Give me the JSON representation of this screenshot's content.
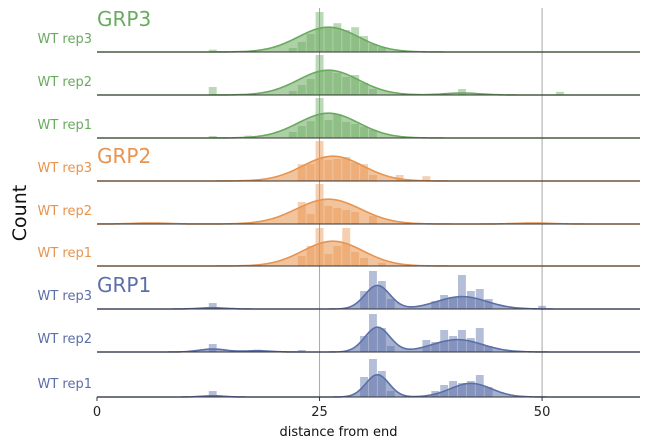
{
  "chart_data": {
    "type": "ridgeline-histogram",
    "xlabel": "distance from end",
    "ylabel": "Count",
    "xlim": [
      0,
      61
    ],
    "xticks": [
      0,
      25,
      50
    ],
    "vlines": [
      25,
      50
    ],
    "rows": [
      {
        "group": "GRP3",
        "label": "WT rep3",
        "color": "#6aaa5f",
        "kde": [
          {
            "mu": 26,
            "sigma": 3.4,
            "w": 1.0
          }
        ],
        "bars": [
          [
            13,
            0.06
          ],
          [
            22,
            0.1
          ],
          [
            23,
            0.25
          ],
          [
            24,
            0.45
          ],
          [
            25,
            1.0
          ],
          [
            26,
            0.6
          ],
          [
            27,
            0.72
          ],
          [
            28,
            0.55
          ],
          [
            29,
            0.62
          ],
          [
            30,
            0.4
          ],
          [
            31,
            0.2
          ],
          [
            32,
            0.12
          ]
        ]
      },
      {
        "group": "GRP3",
        "label": "WT rep2",
        "color": "#6aaa5f",
        "kde": [
          {
            "mu": 26,
            "sigma": 3.4,
            "w": 1.0
          },
          {
            "mu": 41,
            "sigma": 2.0,
            "w": 0.08
          }
        ],
        "bars": [
          [
            13,
            0.2
          ],
          [
            22,
            0.1
          ],
          [
            23,
            0.25
          ],
          [
            24,
            0.4
          ],
          [
            25,
            1.0
          ],
          [
            26,
            0.62
          ],
          [
            27,
            0.55
          ],
          [
            28,
            0.45
          ],
          [
            29,
            0.5
          ],
          [
            30,
            0.3
          ],
          [
            31,
            0.15
          ],
          [
            41,
            0.15
          ],
          [
            52,
            0.08
          ]
        ]
      },
      {
        "group": "GRP3",
        "label": "WT rep1",
        "color": "#6aaa5f",
        "kde": [
          {
            "mu": 26,
            "sigma": 3.4,
            "w": 1.0
          }
        ],
        "bars": [
          [
            13,
            0.05
          ],
          [
            17,
            0.06
          ],
          [
            22,
            0.15
          ],
          [
            23,
            0.3
          ],
          [
            24,
            0.42
          ],
          [
            25,
            1.0
          ],
          [
            26,
            0.45
          ],
          [
            27,
            0.6
          ],
          [
            28,
            0.4
          ],
          [
            29,
            0.35
          ],
          [
            30,
            0.28
          ],
          [
            31,
            0.2
          ]
        ]
      },
      {
        "group": "GRP2",
        "label": "WT rep3",
        "color": "#e8944e",
        "kde": [
          {
            "mu": 26.5,
            "sigma": 3.4,
            "w": 1.0
          }
        ],
        "bars": [
          [
            23,
            0.42
          ],
          [
            24,
            0.42
          ],
          [
            25,
            1.0
          ],
          [
            26,
            0.52
          ],
          [
            27,
            0.55
          ],
          [
            28,
            0.6
          ],
          [
            29,
            0.45
          ],
          [
            30,
            0.42
          ],
          [
            31,
            0.15
          ],
          [
            34,
            0.15
          ],
          [
            37,
            0.12
          ]
        ]
      },
      {
        "group": "GRP2",
        "label": "WT rep2",
        "color": "#e8944e",
        "kde": [
          {
            "mu": 26,
            "sigma": 3.6,
            "w": 1.0
          },
          {
            "mu": 6,
            "sigma": 2.0,
            "w": 0.04
          },
          {
            "mu": 49,
            "sigma": 2.0,
            "w": 0.04
          }
        ],
        "bars": [
          [
            23,
            0.55
          ],
          [
            24,
            0.25
          ],
          [
            25,
            1.0
          ],
          [
            26,
            0.45
          ],
          [
            27,
            0.4
          ],
          [
            28,
            0.35
          ],
          [
            29,
            0.3
          ],
          [
            31,
            0.2
          ],
          [
            50,
            0.04
          ]
        ]
      },
      {
        "group": "GRP2",
        "label": "WT rep1",
        "color": "#e8944e",
        "kde": [
          {
            "mu": 26.5,
            "sigma": 3.4,
            "w": 1.0
          }
        ],
        "bars": [
          [
            23,
            0.25
          ],
          [
            24,
            0.5
          ],
          [
            25,
            0.95
          ],
          [
            26,
            0.3
          ],
          [
            27,
            0.5
          ],
          [
            28,
            0.95
          ],
          [
            29,
            0.35
          ],
          [
            30,
            0.2
          ],
          [
            32,
            0.08
          ]
        ]
      },
      {
        "group": "GRP1",
        "label": "WT rep3",
        "color": "#5b6fa8",
        "kde": [
          {
            "mu": 31.5,
            "sigma": 1.4,
            "w": 0.95
          },
          {
            "mu": 41,
            "sigma": 2.8,
            "w": 0.5
          },
          {
            "mu": 13,
            "sigma": 1.5,
            "w": 0.05
          }
        ],
        "bars": [
          [
            13,
            0.15
          ],
          [
            30,
            0.45
          ],
          [
            31,
            0.95
          ],
          [
            32,
            0.7
          ],
          [
            33,
            0.25
          ],
          [
            38,
            0.2
          ],
          [
            39,
            0.35
          ],
          [
            40,
            0.3
          ],
          [
            41,
            0.85
          ],
          [
            42,
            0.45
          ],
          [
            43,
            0.5
          ],
          [
            44,
            0.25
          ],
          [
            50,
            0.08
          ]
        ]
      },
      {
        "group": "GRP1",
        "label": "WT rep2",
        "color": "#5b6fa8",
        "kde": [
          {
            "mu": 31.5,
            "sigma": 1.4,
            "w": 1.0
          },
          {
            "mu": 40.5,
            "sigma": 2.8,
            "w": 0.5
          },
          {
            "mu": 13,
            "sigma": 1.5,
            "w": 0.12
          },
          {
            "mu": 18,
            "sigma": 1.5,
            "w": 0.05
          }
        ],
        "bars": [
          [
            13,
            0.2
          ],
          [
            18,
            0.06
          ],
          [
            23,
            0.05
          ],
          [
            30,
            0.4
          ],
          [
            31,
            0.95
          ],
          [
            32,
            0.6
          ],
          [
            33,
            0.15
          ],
          [
            37,
            0.3
          ],
          [
            38,
            0.25
          ],
          [
            39,
            0.55
          ],
          [
            40,
            0.4
          ],
          [
            41,
            0.55
          ],
          [
            42,
            0.35
          ],
          [
            43,
            0.6
          ],
          [
            44,
            0.15
          ]
        ]
      },
      {
        "group": "GRP1",
        "label": "WT rep1",
        "color": "#5b6fa8",
        "kde": [
          {
            "mu": 31.5,
            "sigma": 1.3,
            "w": 0.9
          },
          {
            "mu": 42,
            "sigma": 2.3,
            "w": 0.55
          },
          {
            "mu": 13,
            "sigma": 1.2,
            "w": 0.05
          }
        ],
        "bars": [
          [
            13,
            0.15
          ],
          [
            30,
            0.5
          ],
          [
            31,
            0.95
          ],
          [
            32,
            0.65
          ],
          [
            33,
            0.15
          ],
          [
            38,
            0.15
          ],
          [
            39,
            0.3
          ],
          [
            40,
            0.4
          ],
          [
            41,
            0.35
          ],
          [
            42,
            0.4
          ],
          [
            43,
            0.55
          ],
          [
            44,
            0.25
          ]
        ]
      }
    ],
    "groups": [
      {
        "name": "GRP3",
        "color": "#6aaa5f"
      },
      {
        "name": "GRP2",
        "color": "#e8944e"
      },
      {
        "name": "GRP1",
        "color": "#5b6fa8"
      }
    ]
  }
}
